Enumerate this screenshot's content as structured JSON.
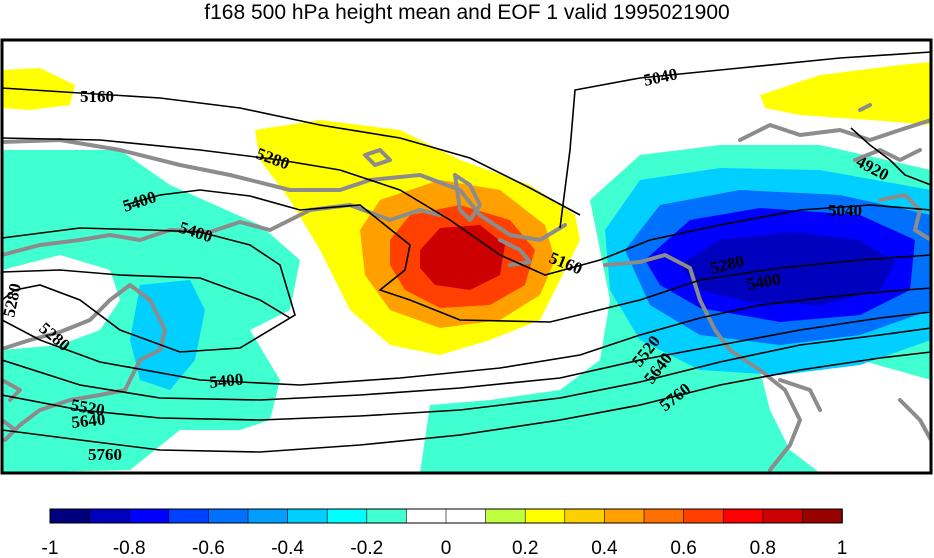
{
  "title": "f168 500 hPa height mean and EOF 1 valid 1995021900",
  "colors": {
    "coastline": "#8c8c8c",
    "contour": "#000000",
    "scale": [
      "#00007f",
      "#0000bf",
      "#0000ff",
      "#0040ff",
      "#0070ff",
      "#009fff",
      "#00cfff",
      "#00ffff",
      "#40ffd0",
      "#ffffff",
      "#ffffff",
      "#c0ff40",
      "#ffff00",
      "#ffd000",
      "#ffa000",
      "#ff7000",
      "#ff4000",
      "#ff0000",
      "#cc0000",
      "#990000"
    ]
  },
  "contour_labels": [
    "5160",
    "5040",
    "5280",
    "4920",
    "5400",
    "5400",
    "5040",
    "5280",
    "5400",
    "5160",
    "5280",
    "5280",
    "5520",
    "5640",
    "5760",
    "5400",
    "5520",
    "5640",
    "5760"
  ],
  "colorbar": {
    "ticks": [
      "-1",
      "-0.8",
      "-0.6",
      "-0.4",
      "-0.2",
      "0",
      "0.2",
      "0.4",
      "0.6",
      "0.8",
      "1"
    ]
  }
}
